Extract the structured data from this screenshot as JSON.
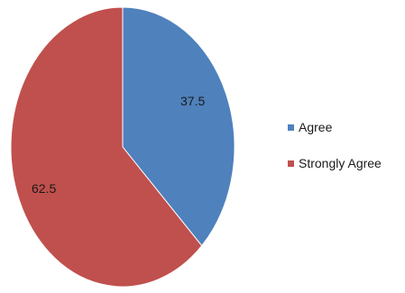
{
  "chart_data": {
    "type": "pie",
    "categories": [
      "Agree",
      "Strongly Agree"
    ],
    "values": [
      37.5,
      62.5
    ],
    "data_labels": [
      "37.5",
      "62.5"
    ],
    "colors": [
      "#4f81bd",
      "#c0504d"
    ],
    "start_angle": "12 o'clock, clockwise",
    "legend_position": "right"
  }
}
